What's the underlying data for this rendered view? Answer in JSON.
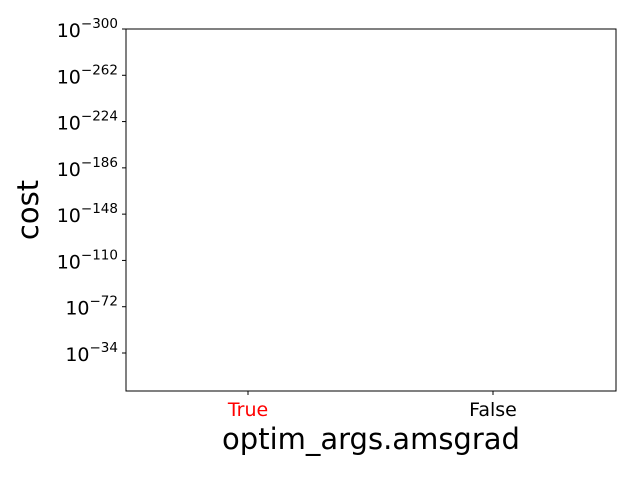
{
  "chart_data": {
    "type": "scatter",
    "title": "",
    "xlabel": "optim_args.amsgrad",
    "ylabel": "cost",
    "categories": [
      {
        "label": "True",
        "color": "#ff0000"
      },
      {
        "label": "False",
        "color": "#000000"
      }
    ],
    "y_scale": "log",
    "y_inverted": true,
    "y_ticks": [
      {
        "base": "10",
        "exponent": "−300",
        "value_exp": -300
      },
      {
        "base": "10",
        "exponent": "−262",
        "value_exp": -262
      },
      {
        "base": "10",
        "exponent": "−224",
        "value_exp": -224
      },
      {
        "base": "10",
        "exponent": "−186",
        "value_exp": -186
      },
      {
        "base": "10",
        "exponent": "−148",
        "value_exp": -148
      },
      {
        "base": "10",
        "exponent": "−110",
        "value_exp": -110
      },
      {
        "base": "10",
        "exponent": "−72",
        "value_exp": -72
      },
      {
        "base": "10",
        "exponent": "−34",
        "value_exp": -34
      }
    ],
    "series": [],
    "grid": false,
    "legend": "none"
  }
}
